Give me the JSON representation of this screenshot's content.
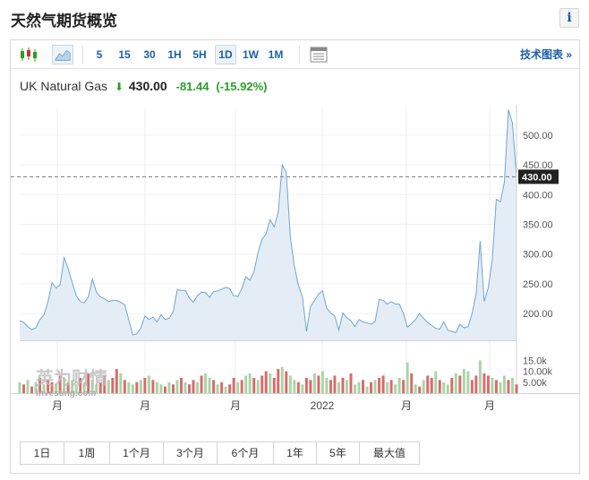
{
  "page": {
    "title": "天然气期货概览",
    "info_label": "i"
  },
  "toolbar": {
    "intervals": [
      "5",
      "15",
      "30",
      "1H",
      "5H",
      "1D",
      "1W",
      "1M"
    ],
    "active_interval": "1D",
    "tech_link": "技术图表 »"
  },
  "quote": {
    "name": "UK Natural Gas",
    "direction": "down",
    "price": "430.00",
    "change": "-81.44",
    "change_pct": "(-15.92%)"
  },
  "watermark": {
    "brand_cn": "英为财情",
    "brand_en": "Investing.com"
  },
  "ranges": [
    "1日",
    "1周",
    "1个月",
    "3个月",
    "6个月",
    "1年",
    "5年",
    "最大值"
  ],
  "colors": {
    "line": "#6fa6cf",
    "fill": "#e4edf6",
    "vol_up": "#a9d5a6",
    "vol_down": "#d86b6b",
    "last_price_bg": "#222222"
  },
  "chart_data": {
    "type": "area",
    "price_axis": {
      "ticks": [
        200,
        250,
        300,
        350,
        400,
        450,
        500
      ],
      "tick_labels": [
        "200.00",
        "250.00",
        "300.00",
        "350.00",
        "400.00",
        "450.00",
        "500.00"
      ],
      "ylim": [
        155,
        545
      ]
    },
    "last_price": 430.0,
    "last_price_label": "430.00",
    "x_labels": [
      "月",
      "月",
      "月",
      "2022",
      "月",
      "月"
    ],
    "volume_axis": {
      "tick_labels": [
        "15.0k",
        "10.00k",
        "5.00k"
      ],
      "ticks": [
        15000,
        10000,
        5000
      ],
      "ymax": 18000
    },
    "values": [
      188,
      185,
      178,
      173,
      176,
      190,
      198,
      220,
      252,
      243,
      248,
      294,
      276,
      252,
      230,
      220,
      218,
      228,
      258,
      236,
      228,
      225,
      220,
      222,
      222,
      219,
      215,
      190,
      164,
      166,
      176,
      196,
      190,
      194,
      186,
      198,
      190,
      192,
      203,
      240,
      239,
      239,
      226,
      219,
      230,
      236,
      235,
      227,
      237,
      238,
      241,
      244,
      242,
      230,
      229,
      242,
      262,
      256,
      270,
      302,
      325,
      334,
      358,
      346,
      370,
      450,
      437,
      330,
      280,
      248,
      228,
      170,
      212,
      222,
      233,
      238,
      209,
      201,
      196,
      172,
      201,
      193,
      188,
      178,
      190,
      186,
      184,
      182,
      187,
      224,
      222,
      216,
      220,
      216,
      216,
      200,
      177,
      183,
      190,
      200,
      192,
      185,
      180,
      175,
      174,
      186,
      172,
      170,
      168,
      182,
      176,
      178,
      200,
      233,
      322,
      220,
      243,
      290,
      392,
      388,
      421,
      543,
      520,
      430
    ],
    "volumes": [
      5000,
      4000,
      6000,
      3000,
      5000,
      7000,
      4000,
      6000,
      5000,
      4000,
      8000,
      7000,
      5000,
      6000,
      4000,
      7000,
      5000,
      9000,
      6000,
      4000,
      5000,
      8000,
      6000,
      7000,
      11000,
      9000,
      6000,
      5000,
      4000,
      5000,
      6000,
      7000,
      8000,
      6000,
      5000,
      4000,
      3000,
      5000,
      4000,
      6000,
      7000,
      5000,
      4000,
      6000,
      5000,
      8000,
      9000,
      7000,
      6000,
      4000,
      5000,
      3000,
      4000,
      7000,
      5000,
      6000,
      8000,
      9000,
      7000,
      6000,
      8000,
      10000,
      9000,
      7000,
      11000,
      12000,
      10000,
      8000,
      6000,
      5000,
      4000,
      7000,
      6000,
      9000,
      8000,
      10000,
      7000,
      6000,
      8000,
      5000,
      7000,
      6000,
      9000,
      4000,
      5000,
      6000,
      3000,
      5000,
      6000,
      7000,
      8000,
      5000,
      6000,
      4000,
      7000,
      6000,
      14000,
      9000,
      4000,
      3000,
      6000,
      8000,
      7000,
      10000,
      6000,
      5000,
      4000,
      7000,
      9000,
      8000,
      11000,
      10000,
      6000,
      8000,
      15000,
      9000,
      8000,
      7000,
      6000,
      5000,
      8000,
      6000,
      7000,
      4000
    ],
    "volume_up": [
      1,
      0,
      1,
      0,
      1,
      0,
      1,
      0,
      0,
      1,
      0,
      1,
      0,
      1,
      1,
      0,
      1,
      0,
      1,
      1,
      0,
      0,
      1,
      0,
      0,
      1,
      0,
      1,
      1,
      0,
      1,
      0,
      1,
      0,
      1,
      1,
      0,
      1,
      0,
      1,
      0,
      1,
      0,
      0,
      1,
      0,
      1,
      1,
      0,
      1,
      0,
      1,
      0,
      0,
      1,
      0,
      1,
      1,
      0,
      1,
      0,
      0,
      1,
      0,
      0,
      1,
      0,
      1,
      1,
      0,
      1,
      0,
      0,
      1,
      0,
      1,
      1,
      0,
      0,
      1,
      0,
      1,
      0,
      1,
      1,
      0,
      1,
      0,
      1,
      0,
      0,
      1,
      0,
      1,
      1,
      0,
      1,
      0,
      1,
      0,
      1,
      0,
      0,
      1,
      0,
      1,
      1,
      0,
      1,
      0,
      1,
      1,
      0,
      0,
      1,
      0,
      0,
      1,
      0,
      1,
      1,
      0,
      1,
      0
    ]
  }
}
